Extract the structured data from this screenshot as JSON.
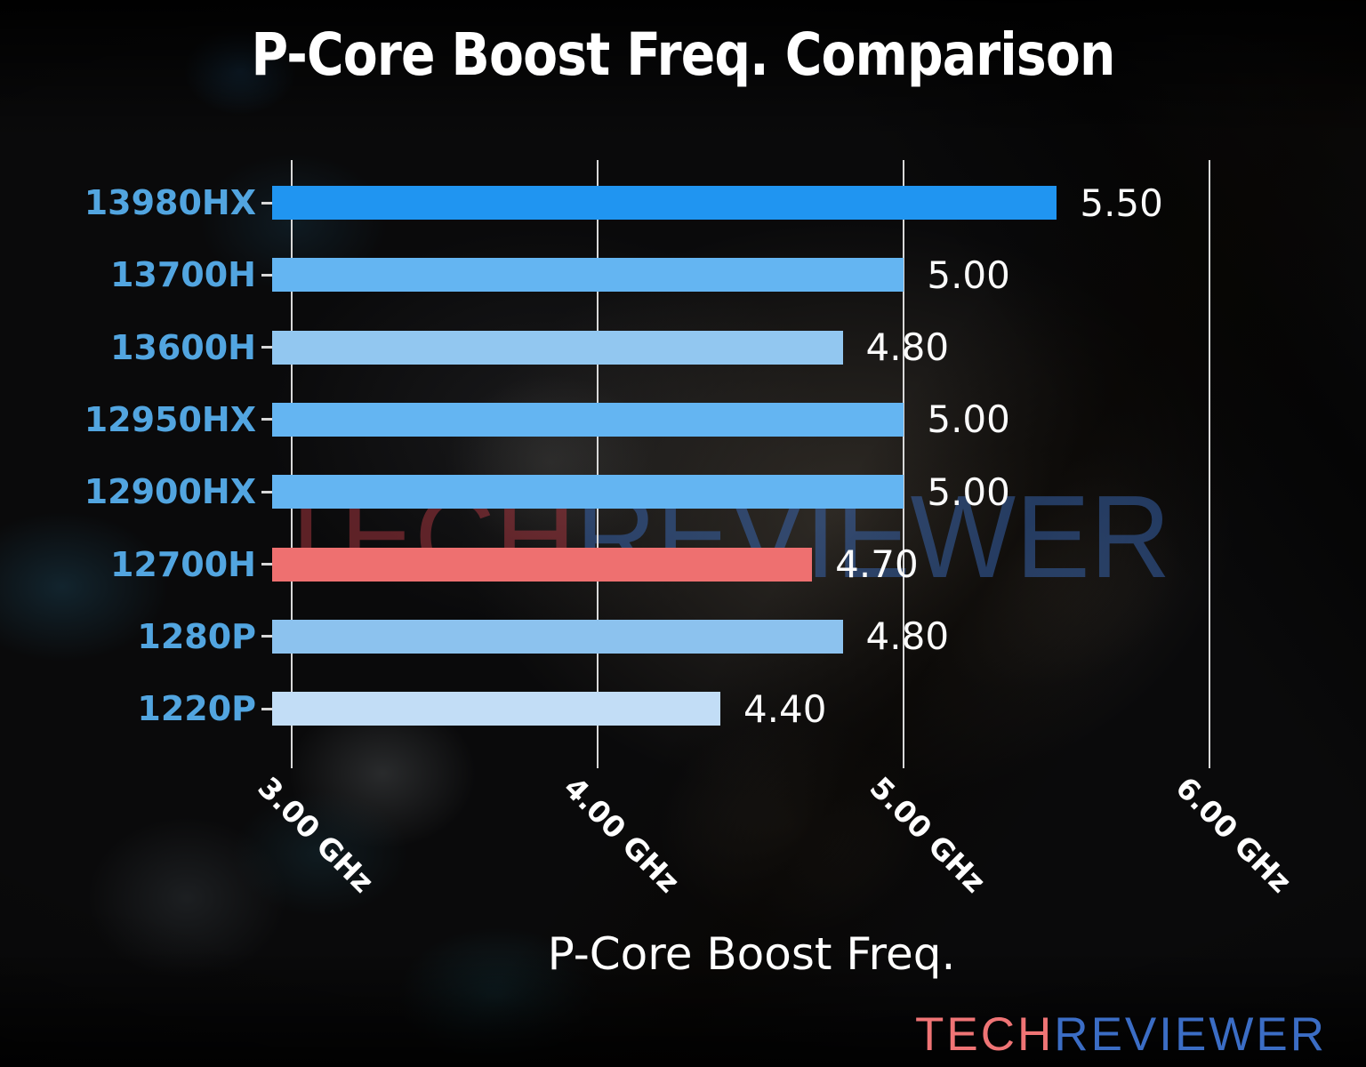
{
  "chart_data": {
    "type": "bar",
    "orientation": "horizontal",
    "title": "P-Core Boost Freq. Comparison",
    "xlabel": "P-Core Boost Freq.",
    "categories": [
      "13980HX",
      "13700H",
      "13600H",
      "12950HX",
      "12900HX",
      "12700H",
      "1280P",
      "1220P"
    ],
    "values": [
      5.5,
      5.0,
      4.8,
      5.0,
      5.0,
      4.7,
      4.8,
      4.4
    ],
    "value_labels": [
      "5.50",
      "5.00",
      "4.80",
      "5.00",
      "5.00",
      "4.70",
      "4.80",
      "4.40"
    ],
    "bar_colors": [
      "#2095f1",
      "#64b5f2",
      "#92c7f0",
      "#64b5f2",
      "#64b5f2",
      "#ee7070",
      "#8cc2ee",
      "#c2ddf6"
    ],
    "highlight_index": 5,
    "x_ticks": [
      {
        "value": 3,
        "label": "3.00 GHz"
      },
      {
        "value": 4,
        "label": "4.00 GHz"
      },
      {
        "value": 5,
        "label": "5.00 GHz"
      },
      {
        "value": 6,
        "label": "6.00 GHz"
      }
    ],
    "xlim": [
      2.935,
      6.45
    ],
    "grid": "vertical",
    "legend": "none",
    "category_label_color": "#52a5e0",
    "grid_color": "#d8d8d8",
    "value_label_color": "#fafafa"
  },
  "watermark": {
    "part1": "TECH",
    "part2": "REVIEWER",
    "part1_color": "rgba(175,55,65,0.50)",
    "part2_color": "rgba(63,116,202,0.45)"
  },
  "logo": {
    "part1": "TECH",
    "part2": "REVIEWER",
    "part1_color": "#ef7475",
    "part2_color": "#3b6dc5"
  }
}
